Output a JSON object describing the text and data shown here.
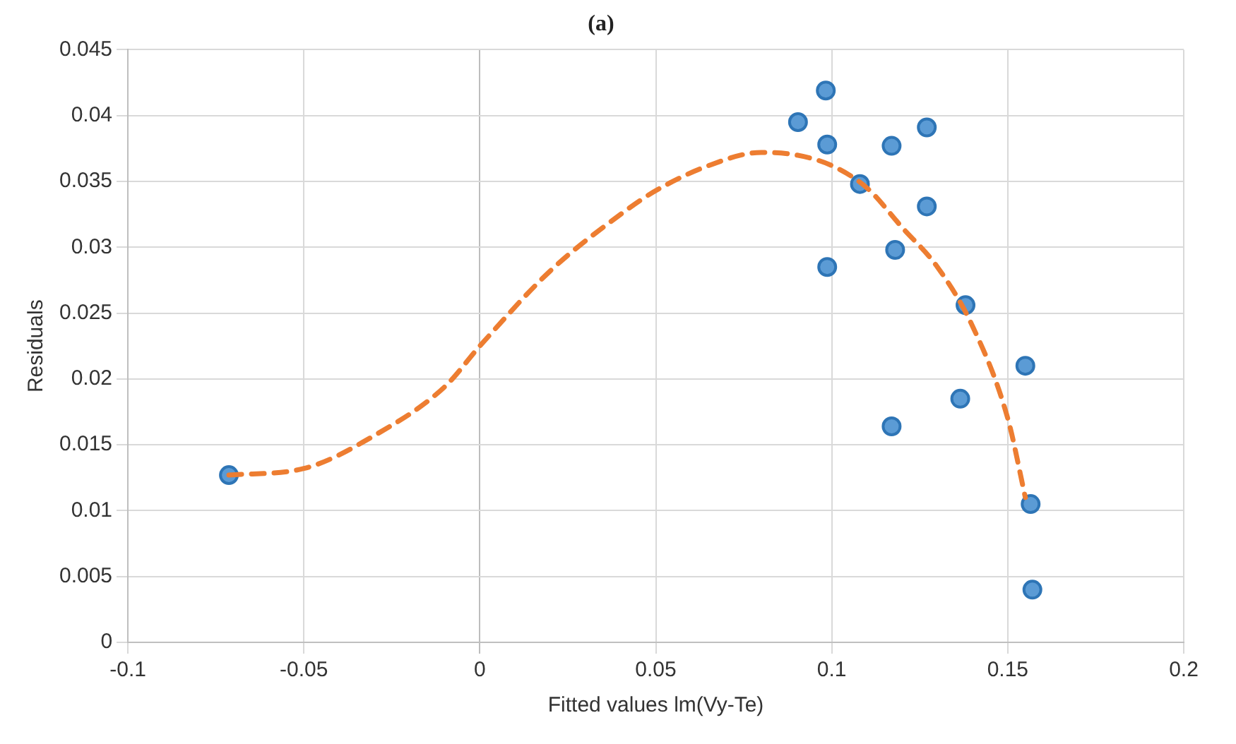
{
  "chart_data": {
    "type": "scatter",
    "title": "(a)",
    "xlabel": "Fitted values lm(Vy-Te)",
    "ylabel": "Residuals",
    "xlim": [
      -0.1,
      0.2
    ],
    "xticks": [
      -0.1,
      -0.05,
      0,
      0.05,
      0.1,
      0.15,
      0.2
    ],
    "ylim": [
      0,
      0.045
    ],
    "yticks": [
      0,
      0.005,
      0.01,
      0.015,
      0.02,
      0.025,
      0.03,
      0.035,
      0.04,
      0.045
    ],
    "grid": true,
    "legend": false,
    "series": [
      {
        "color": "#5b9bd5",
        "marker": "circle",
        "x": [
          -0.0713,
          0.0904,
          0.0983,
          0.0987,
          0.0987,
          0.108,
          0.117,
          0.118,
          0.117,
          0.127,
          0.127,
          0.138,
          0.1365,
          0.155,
          0.1565,
          0.157
        ],
        "values": [
          0.0127,
          0.0395,
          0.0419,
          0.0378,
          0.0285,
          0.0348,
          0.0377,
          0.0298,
          0.0164,
          0.0391,
          0.0331,
          0.0256,
          0.0185,
          0.021,
          0.0105,
          0.004
        ]
      },
      {
        "type": "line",
        "color": "#ed7d31",
        "marker": "none",
        "line_style": "dashed",
        "x": [
          -0.0713,
          -0.05,
          -0.03,
          -0.01,
          0,
          0.02,
          0.04,
          0.05,
          0.065,
          0.08,
          0.09,
          0.1,
          0.11,
          0.12,
          0.13,
          0.14,
          0.15,
          0.155
        ],
        "values": [
          0.0127,
          0.0132,
          0.0157,
          0.0194,
          0.0225,
          0.0282,
          0.0325,
          0.0343,
          0.0362,
          0.0372,
          0.037,
          0.0362,
          0.0345,
          0.0315,
          0.0285,
          0.024,
          0.017,
          0.011
        ]
      }
    ]
  }
}
